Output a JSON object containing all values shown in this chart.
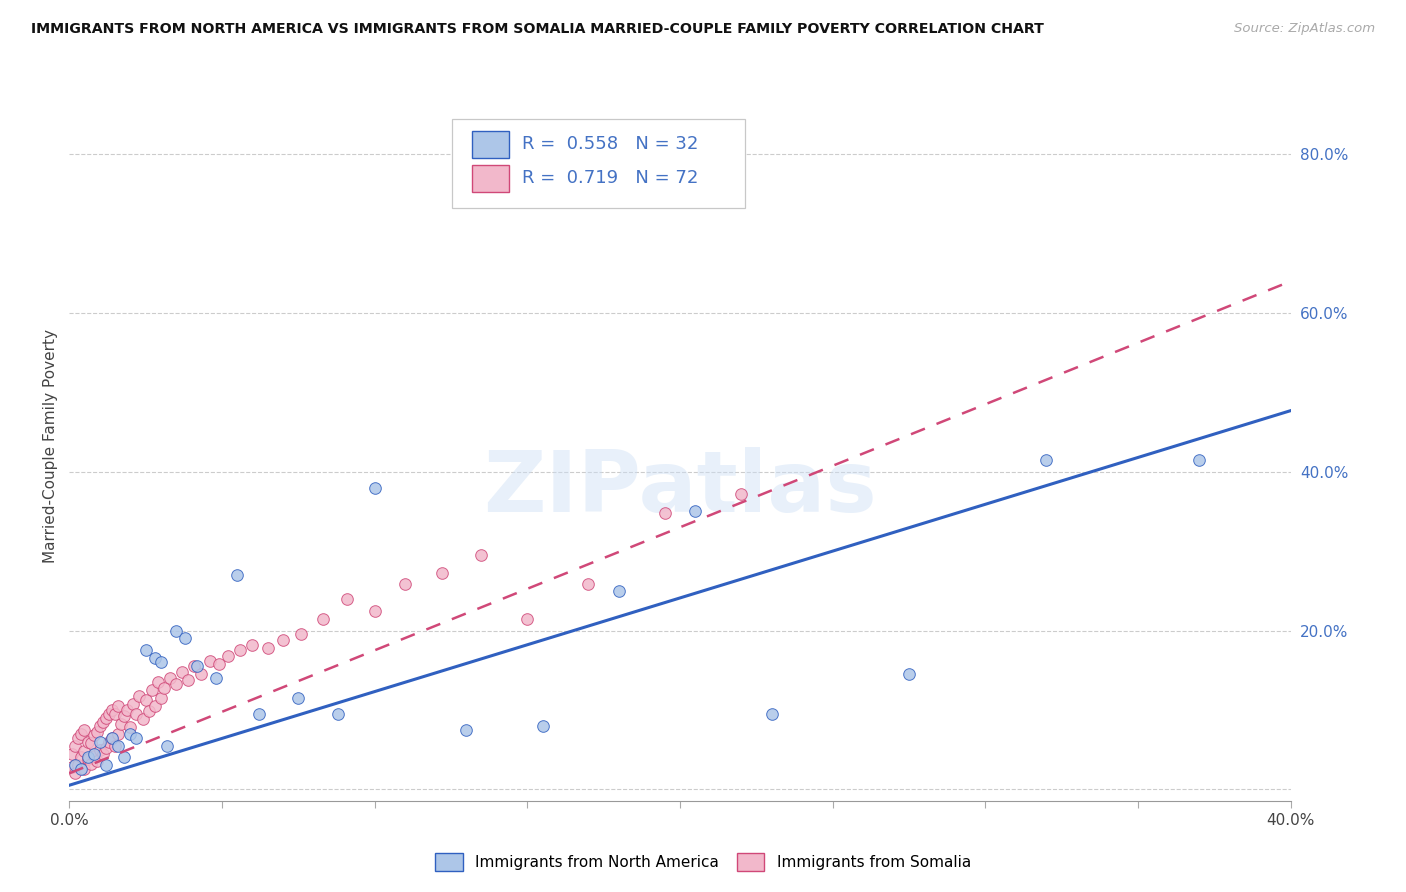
{
  "title": "IMMIGRANTS FROM NORTH AMERICA VS IMMIGRANTS FROM SOMALIA MARRIED-COUPLE FAMILY POVERTY CORRELATION CHART",
  "source": "Source: ZipAtlas.com",
  "ylabel": "Married-Couple Family Poverty",
  "R_north_america": 0.558,
  "N_north_america": 32,
  "R_somalia": 0.719,
  "N_somalia": 72,
  "color_north_america": "#adc6e8",
  "color_somalia": "#f2b8cb",
  "line_color_north_america": "#3060c0",
  "line_color_somalia": "#d04878",
  "text_color_blue": "#4472c4",
  "watermark": "ZIPatlas",
  "legend_label_1": "Immigrants from North America",
  "legend_label_2": "Immigrants from Somalia",
  "xlim": [
    0.0,
    0.4
  ],
  "ylim": [
    -0.015,
    0.88
  ],
  "x_tick_positions": [
    0.0,
    0.05,
    0.1,
    0.15,
    0.2,
    0.25,
    0.3,
    0.35,
    0.4
  ],
  "y_tick_positions": [
    0.0,
    0.2,
    0.4,
    0.6,
    0.8
  ],
  "na_slope": 1.18,
  "na_intercept": 0.005,
  "som_slope": 1.55,
  "som_intercept": 0.02,
  "north_america_x": [
    0.002,
    0.004,
    0.006,
    0.008,
    0.01,
    0.012,
    0.014,
    0.016,
    0.018,
    0.02,
    0.022,
    0.025,
    0.028,
    0.03,
    0.032,
    0.035,
    0.038,
    0.042,
    0.048,
    0.055,
    0.062,
    0.075,
    0.088,
    0.1,
    0.13,
    0.155,
    0.18,
    0.205,
    0.23,
    0.275,
    0.32,
    0.37
  ],
  "north_america_y": [
    0.03,
    0.025,
    0.04,
    0.045,
    0.06,
    0.03,
    0.065,
    0.055,
    0.04,
    0.07,
    0.065,
    0.175,
    0.165,
    0.16,
    0.055,
    0.2,
    0.19,
    0.155,
    0.14,
    0.27,
    0.095,
    0.115,
    0.095,
    0.38,
    0.075,
    0.08,
    0.25,
    0.35,
    0.095,
    0.145,
    0.415,
    0.415
  ],
  "somalia_x": [
    0.001,
    0.001,
    0.002,
    0.002,
    0.003,
    0.003,
    0.004,
    0.004,
    0.005,
    0.005,
    0.005,
    0.006,
    0.006,
    0.007,
    0.007,
    0.008,
    0.008,
    0.009,
    0.009,
    0.01,
    0.01,
    0.011,
    0.011,
    0.012,
    0.012,
    0.013,
    0.013,
    0.014,
    0.014,
    0.015,
    0.015,
    0.016,
    0.016,
    0.017,
    0.018,
    0.019,
    0.02,
    0.021,
    0.022,
    0.023,
    0.024,
    0.025,
    0.026,
    0.027,
    0.028,
    0.029,
    0.03,
    0.031,
    0.033,
    0.035,
    0.037,
    0.039,
    0.041,
    0.043,
    0.046,
    0.049,
    0.052,
    0.056,
    0.06,
    0.065,
    0.07,
    0.076,
    0.083,
    0.091,
    0.1,
    0.11,
    0.122,
    0.135,
    0.15,
    0.17,
    0.195,
    0.22
  ],
  "somalia_y": [
    0.028,
    0.045,
    0.02,
    0.055,
    0.03,
    0.065,
    0.04,
    0.07,
    0.025,
    0.048,
    0.075,
    0.038,
    0.06,
    0.032,
    0.058,
    0.042,
    0.068,
    0.035,
    0.072,
    0.05,
    0.08,
    0.045,
    0.085,
    0.052,
    0.09,
    0.06,
    0.095,
    0.065,
    0.1,
    0.055,
    0.095,
    0.07,
    0.105,
    0.082,
    0.092,
    0.1,
    0.078,
    0.108,
    0.095,
    0.118,
    0.088,
    0.112,
    0.098,
    0.125,
    0.105,
    0.135,
    0.115,
    0.128,
    0.14,
    0.132,
    0.148,
    0.138,
    0.155,
    0.145,
    0.162,
    0.158,
    0.168,
    0.175,
    0.182,
    0.178,
    0.188,
    0.195,
    0.215,
    0.24,
    0.225,
    0.258,
    0.272,
    0.295,
    0.215,
    0.258,
    0.348,
    0.372
  ]
}
